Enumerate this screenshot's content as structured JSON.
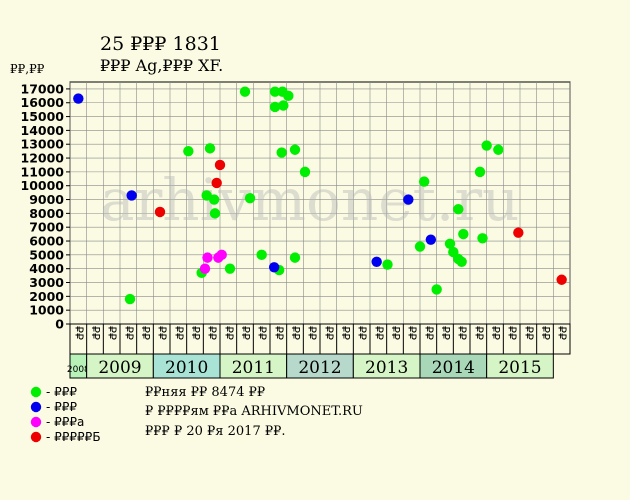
{
  "chart_data": {
    "type": "scatter",
    "title": "25 ₽₽₽ 1831",
    "subtitle": "₽₽₽ Ag,₽₽₽ XF.",
    "ylabel": "₽₽,₽₽",
    "ylim": [
      0,
      17500
    ],
    "yticks": [
      0,
      1000,
      2000,
      3000,
      4000,
      5000,
      6000,
      7000,
      8000,
      9000,
      10000,
      11000,
      12000,
      13000,
      14000,
      15000,
      16000,
      17000
    ],
    "x_slots": 30,
    "month_labels": [
      "₽₽",
      "₽₽",
      "₽₽",
      "₽₽",
      "₽₽",
      "₽₽",
      "₽₽",
      "₽₽",
      "₽₽",
      "₽₽",
      "₽₽",
      "₽₽",
      "₽₽",
      "₽₽",
      "₽₽",
      "₽₽",
      "₽₽",
      "₽₽",
      "₽₽",
      "₽₽",
      "₽₽",
      "₽₽",
      "₽₽",
      "₽₽",
      "₽₽",
      "₽₽",
      "₽₽",
      "₽₽",
      "₽₽",
      "₽₽"
    ],
    "years": [
      {
        "label": "2008",
        "start": 0,
        "span": 1,
        "color": "#b8f2b8",
        "small": true
      },
      {
        "label": "2009",
        "start": 1,
        "span": 4,
        "color": "#d6f5c6"
      },
      {
        "label": "2010",
        "start": 5,
        "span": 4,
        "color": "#a8e3d6"
      },
      {
        "label": "2011",
        "start": 9,
        "span": 4,
        "color": "#d6f5c6"
      },
      {
        "label": "2012",
        "start": 13,
        "span": 4,
        "color": "#b6d9cc"
      },
      {
        "label": "2013",
        "start": 17,
        "span": 4,
        "color": "#d6f5c6"
      },
      {
        "label": "2014",
        "start": 21,
        "span": 4,
        "color": "#a8d8b8"
      },
      {
        "label": "2015",
        "start": 25,
        "span": 4,
        "color": "#d6f5c6"
      }
    ],
    "series": [
      {
        "name": "- ₽₽₽",
        "color": "#00ee00",
        "points": [
          [
            3.1,
            1800
          ],
          [
            6.6,
            12500
          ],
          [
            7.4,
            3700
          ],
          [
            7.7,
            9300
          ],
          [
            7.9,
            12700
          ],
          [
            8.15,
            9000
          ],
          [
            8.2,
            8000
          ],
          [
            9.1,
            4000
          ],
          [
            10.0,
            16800
          ],
          [
            10.3,
            9100
          ],
          [
            11.0,
            5000
          ],
          [
            11.8,
            16800
          ],
          [
            11.8,
            15700
          ],
          [
            12.05,
            3900
          ],
          [
            12.2,
            12400
          ],
          [
            12.25,
            16800
          ],
          [
            12.3,
            15800
          ],
          [
            12.6,
            16500
          ],
          [
            13.0,
            4800
          ],
          [
            13.0,
            12600
          ],
          [
            13.6,
            11000
          ],
          [
            18.55,
            4300
          ],
          [
            20.5,
            5600
          ],
          [
            20.75,
            10300
          ],
          [
            21.5,
            2500
          ],
          [
            22.3,
            5800
          ],
          [
            22.5,
            5200
          ],
          [
            22.8,
            8300
          ],
          [
            22.8,
            4700
          ],
          [
            23.0,
            4500
          ],
          [
            23.1,
            6500
          ],
          [
            24.1,
            11000
          ],
          [
            24.25,
            6200
          ],
          [
            24.5,
            12900
          ],
          [
            25.2,
            12600
          ]
        ]
      },
      {
        "name": "- ₽₽₽",
        "color": "#0000ee",
        "points": [
          [
            0.0,
            16300
          ],
          [
            3.2,
            9300
          ],
          [
            11.75,
            4100
          ],
          [
            17.9,
            4500
          ],
          [
            19.8,
            9000
          ],
          [
            21.15,
            6100
          ]
        ]
      },
      {
        "name": "- ₽₽₽а",
        "color": "#ff00ff",
        "points": [
          [
            7.6,
            4000
          ],
          [
            7.75,
            4800
          ],
          [
            8.4,
            4800
          ],
          [
            8.6,
            5000
          ]
        ]
      },
      {
        "name": "- ₽₽₽₽₽Б",
        "color": "#ee0000",
        "points": [
          [
            4.9,
            8100
          ],
          [
            8.3,
            10200
          ],
          [
            8.5,
            11500
          ],
          [
            26.4,
            6600
          ],
          [
            29.0,
            3200
          ]
        ]
      }
    ],
    "legend_placement": "bottom-left",
    "grid": true
  },
  "info": {
    "line1": "₽₽няя ₽₽ 8474 ₽₽",
    "line2": "₽ ₽₽₽₽ям ₽₽а ARHIVMONET.RU",
    "line3": "₽₽₽ ₽ 20 ₽я 2017 ₽₽."
  },
  "watermark": "arhivmonet.ru",
  "colors": {
    "background": "#fbfbe3",
    "plot_background": "#fbfbe3",
    "grid": "#8a8a8a"
  }
}
